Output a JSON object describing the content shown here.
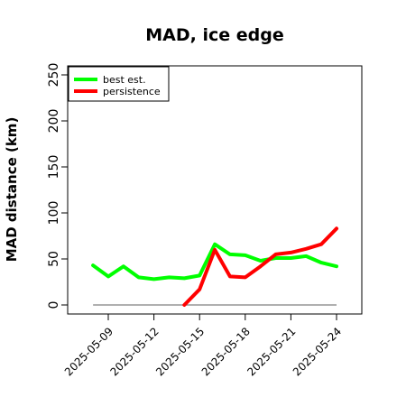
{
  "chart_data": {
    "type": "line",
    "title": "MAD, ice edge",
    "ylabel": "MAD distance (km)",
    "xlabel": "",
    "ylim": [
      0,
      250
    ],
    "yticks": [
      0,
      50,
      100,
      150,
      200,
      250
    ],
    "xlim": [
      "2025-05-07",
      "2025-05-25"
    ],
    "xtick_labels": [
      "2025-05-09",
      "2025-05-12",
      "2025-05-15",
      "2025-05-18",
      "2025-05-21",
      "2025-05-24"
    ],
    "legend": {
      "placement": "top-left",
      "entries": [
        "best est.",
        "persistence"
      ]
    },
    "grid": false,
    "series": [
      {
        "name": "best est.",
        "color": "#00ff00",
        "points": [
          {
            "x": "2025-05-08",
            "y": 43
          },
          {
            "x": "2025-05-09",
            "y": 31
          },
          {
            "x": "2025-05-10",
            "y": 42
          },
          {
            "x": "2025-05-11",
            "y": 30
          },
          {
            "x": "2025-05-12",
            "y": 28
          },
          {
            "x": "2025-05-13",
            "y": 30
          },
          {
            "x": "2025-05-14",
            "y": 29
          },
          {
            "x": "2025-05-15",
            "y": 32
          },
          {
            "x": "2025-05-16",
            "y": 66
          },
          {
            "x": "2025-05-17",
            "y": 55
          },
          {
            "x": "2025-05-18",
            "y": 54
          },
          {
            "x": "2025-05-19",
            "y": 48
          },
          {
            "x": "2025-05-20",
            "y": 51
          },
          {
            "x": "2025-05-21",
            "y": 51
          },
          {
            "x": "2025-05-22",
            "y": 53
          },
          {
            "x": "2025-05-23",
            "y": 46
          },
          {
            "x": "2025-05-24",
            "y": 42
          }
        ]
      },
      {
        "name": "persistence",
        "color": "#ff0000",
        "points": [
          {
            "x": "2025-05-14",
            "y": 0
          },
          {
            "x": "2025-05-15",
            "y": 17
          },
          {
            "x": "2025-05-16",
            "y": 60
          },
          {
            "x": "2025-05-17",
            "y": 31
          },
          {
            "x": "2025-05-18",
            "y": 30
          },
          {
            "x": "2025-05-19",
            "y": 42
          },
          {
            "x": "2025-05-20",
            "y": 55
          },
          {
            "x": "2025-05-21",
            "y": 57
          },
          {
            "x": "2025-05-22",
            "y": 61
          },
          {
            "x": "2025-05-23",
            "y": 66
          },
          {
            "x": "2025-05-24",
            "y": 83
          }
        ]
      }
    ],
    "reference_line": {
      "y": 0,
      "from": "2025-05-08",
      "to": "2025-05-24",
      "color": "#808080"
    }
  }
}
